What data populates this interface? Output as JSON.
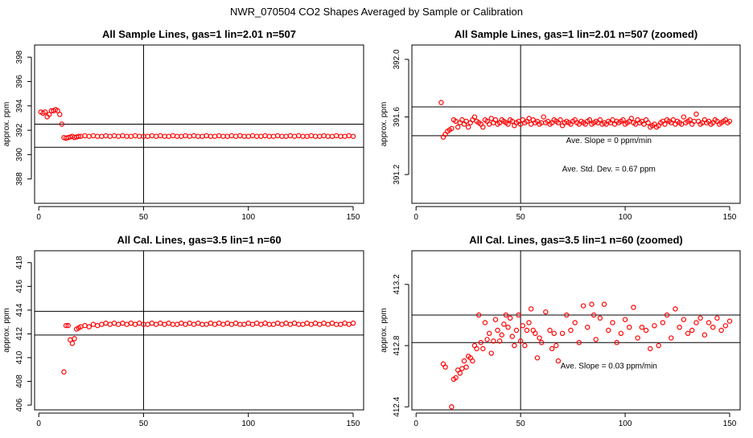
{
  "figure_title": "NWR_070504  CO2 Shapes Averaged by Sample or Calibration",
  "chart_data": [
    {
      "type": "scatter",
      "title": "All Sample Lines, gas=1 lin=2.01 n=507",
      "xlabel": "",
      "ylabel": "approx. ppm",
      "xlim": [
        -2,
        155
      ],
      "ylim": [
        386,
        399
      ],
      "xticks": [
        0,
        50,
        100,
        150
      ],
      "yticks": [
        388,
        390,
        392,
        394,
        396,
        398
      ],
      "hlines": [
        390.6,
        392.5
      ],
      "vline": 50,
      "color": "#ff0000",
      "annotations": [],
      "series": [
        {
          "x": [
            1,
            2,
            3,
            4,
            5,
            6,
            7,
            8,
            9,
            10,
            11,
            12,
            13,
            14,
            15,
            16,
            17,
            18,
            19,
            20,
            22,
            24,
            26,
            28,
            30,
            32,
            34,
            36,
            38,
            40,
            42,
            44,
            46,
            48,
            50,
            52,
            54,
            56,
            58,
            60,
            62,
            64,
            66,
            68,
            70,
            72,
            74,
            76,
            78,
            80,
            82,
            84,
            86,
            88,
            90,
            92,
            94,
            96,
            98,
            100,
            102,
            104,
            106,
            108,
            110,
            112,
            114,
            116,
            118,
            120,
            122,
            124,
            126,
            128,
            130,
            132,
            134,
            136,
            138,
            140,
            142,
            144,
            146,
            148,
            150
          ],
          "y": [
            393.5,
            393.4,
            393.5,
            393.1,
            393.3,
            393.6,
            393.6,
            393.7,
            393.6,
            393.3,
            392.5,
            391.4,
            391.35,
            391.4,
            391.45,
            391.5,
            391.4,
            391.45,
            391.5,
            391.5,
            391.55,
            391.5,
            391.55,
            391.5,
            391.5,
            391.55,
            391.5,
            391.55,
            391.5,
            391.55,
            391.5,
            391.5,
            391.55,
            391.5,
            391.5,
            391.5,
            391.55,
            391.5,
            391.55,
            391.5,
            391.5,
            391.55,
            391.5,
            391.5,
            391.55,
            391.5,
            391.55,
            391.5,
            391.5,
            391.55,
            391.5,
            391.5,
            391.55,
            391.5,
            391.5,
            391.55,
            391.5,
            391.55,
            391.5,
            391.5,
            391.55,
            391.5,
            391.5,
            391.55,
            391.5,
            391.5,
            391.55,
            391.5,
            391.5,
            391.55,
            391.5,
            391.55,
            391.5,
            391.5,
            391.55,
            391.5,
            391.5,
            391.55,
            391.5,
            391.5,
            391.55,
            391.5,
            391.5,
            391.55,
            391.5
          ]
        }
      ]
    },
    {
      "type": "scatter",
      "title": "All Sample Lines, gas=1 lin=2.01 n=507 (zoomed)",
      "xlabel": "",
      "ylabel": "approx. ppm",
      "xlim": [
        -2,
        155
      ],
      "ylim": [
        391.0,
        392.1
      ],
      "xticks": [
        0,
        50,
        100,
        150
      ],
      "yticks": [
        391.2,
        391.6,
        392.0
      ],
      "ytick_labels": [
        "391.2",
        "391.6",
        "392.0"
      ],
      "hlines": [
        391.47,
        391.67
      ],
      "vline": 50,
      "color": "#ff0000",
      "annotations": [
        "Ave. Slope =  0  ppm/min",
        "Ave. Std. Dev. =  0.67  ppm"
      ],
      "series": [
        {
          "x": [
            12,
            13,
            14,
            15,
            16,
            17,
            18,
            19,
            20,
            21,
            22,
            23,
            24,
            25,
            26,
            27,
            28,
            29,
            30,
            31,
            32,
            33,
            34,
            35,
            36,
            37,
            38,
            39,
            40,
            41,
            42,
            43,
            44,
            45,
            46,
            47,
            48,
            49,
            50,
            51,
            52,
            53,
            54,
            55,
            56,
            57,
            58,
            59,
            60,
            61,
            62,
            63,
            64,
            65,
            66,
            67,
            68,
            69,
            70,
            71,
            72,
            73,
            74,
            75,
            76,
            77,
            78,
            79,
            80,
            81,
            82,
            83,
            84,
            85,
            86,
            87,
            88,
            89,
            90,
            91,
            92,
            93,
            94,
            95,
            96,
            97,
            98,
            99,
            100,
            101,
            102,
            103,
            104,
            105,
            106,
            107,
            108,
            109,
            110,
            111,
            112,
            113,
            114,
            115,
            116,
            117,
            118,
            119,
            120,
            121,
            122,
            123,
            124,
            125,
            126,
            127,
            128,
            129,
            130,
            131,
            132,
            133,
            134,
            135,
            136,
            137,
            138,
            139,
            140,
            141,
            142,
            143,
            144,
            145,
            146,
            147,
            148,
            149,
            150
          ],
          "y": [
            391.7,
            391.46,
            391.48,
            391.5,
            391.51,
            391.52,
            391.58,
            391.57,
            391.53,
            391.56,
            391.58,
            391.55,
            391.57,
            391.53,
            391.56,
            391.58,
            391.6,
            391.57,
            391.56,
            391.55,
            391.53,
            391.58,
            391.57,
            391.55,
            391.59,
            391.56,
            391.58,
            391.55,
            391.56,
            391.58,
            391.57,
            391.56,
            391.55,
            391.58,
            391.57,
            391.54,
            391.56,
            391.57,
            391.55,
            391.58,
            391.56,
            391.57,
            391.59,
            391.55,
            391.58,
            391.56,
            391.57,
            391.55,
            391.56,
            391.6,
            391.56,
            391.57,
            391.55,
            391.56,
            391.58,
            391.57,
            391.56,
            391.58,
            391.54,
            391.56,
            391.57,
            391.56,
            391.55,
            391.57,
            391.58,
            391.56,
            391.55,
            391.57,
            391.56,
            391.55,
            391.57,
            391.58,
            391.55,
            391.56,
            391.57,
            391.56,
            391.58,
            391.55,
            391.56,
            391.55,
            391.57,
            391.56,
            391.58,
            391.55,
            391.57,
            391.56,
            391.57,
            391.58,
            391.55,
            391.56,
            391.57,
            391.59,
            391.56,
            391.55,
            391.58,
            391.56,
            391.57,
            391.55,
            391.58,
            391.56,
            391.53,
            391.54,
            391.55,
            391.53,
            391.54,
            391.56,
            391.57,
            391.55,
            391.58,
            391.57,
            391.56,
            391.58,
            391.55,
            391.57,
            391.56,
            391.55,
            391.6,
            391.56,
            391.57,
            391.58,
            391.55,
            391.57,
            391.62,
            391.57,
            391.55,
            391.56,
            391.58,
            391.56,
            391.57,
            391.55,
            391.56,
            391.58,
            391.57,
            391.55,
            391.56,
            391.57,
            391.58,
            391.56,
            391.57
          ]
        }
      ]
    },
    {
      "type": "scatter",
      "title": "All Cal. Lines, gas=3.5 lin=1 n=60",
      "xlabel": "",
      "ylabel": "approx. ppm",
      "xlim": [
        -2,
        155
      ],
      "ylim": [
        405.6,
        419.0
      ],
      "xticks": [
        0,
        50,
        100,
        150
      ],
      "yticks": [
        406,
        408,
        410,
        412,
        414,
        416,
        418
      ],
      "hlines": [
        411.9,
        413.9
      ],
      "vline": 50,
      "color": "#ff0000",
      "annotations": [],
      "series": [
        {
          "x": [
            12,
            13,
            14,
            15,
            16,
            17,
            18,
            19,
            20,
            22,
            24,
            26,
            28,
            30,
            32,
            34,
            36,
            38,
            40,
            42,
            44,
            46,
            48,
            50,
            52,
            54,
            56,
            58,
            60,
            62,
            64,
            66,
            68,
            70,
            72,
            74,
            76,
            78,
            80,
            82,
            84,
            86,
            88,
            90,
            92,
            94,
            96,
            98,
            100,
            102,
            104,
            106,
            108,
            110,
            112,
            114,
            116,
            118,
            120,
            122,
            124,
            126,
            128,
            130,
            132,
            134,
            136,
            138,
            140,
            142,
            144,
            146,
            148,
            150
          ],
          "y": [
            408.8,
            412.7,
            412.7,
            411.5,
            411.2,
            411.6,
            412.4,
            412.5,
            412.6,
            412.7,
            412.6,
            412.8,
            412.7,
            412.8,
            412.9,
            412.8,
            412.9,
            412.8,
            412.9,
            412.8,
            412.9,
            412.8,
            412.9,
            412.8,
            412.8,
            412.9,
            412.8,
            412.9,
            412.8,
            412.9,
            412.8,
            412.8,
            412.9,
            412.8,
            412.9,
            412.8,
            412.9,
            412.8,
            412.8,
            412.9,
            412.8,
            412.9,
            412.8,
            412.9,
            412.8,
            412.9,
            412.8,
            412.8,
            412.9,
            412.8,
            412.9,
            412.8,
            412.9,
            412.8,
            412.8,
            412.9,
            412.8,
            412.9,
            412.8,
            412.9,
            412.8,
            412.8,
            412.9,
            412.8,
            412.9,
            412.8,
            412.9,
            412.8,
            412.9,
            412.8,
            412.8,
            412.9,
            412.8,
            412.9
          ]
        }
      ]
    },
    {
      "type": "scatter",
      "title": "All Cal. Lines, gas=3.5 lin=1 n=60 (zoomed)",
      "xlabel": "",
      "ylabel": "approx. ppm",
      "xlim": [
        -2,
        155
      ],
      "ylim": [
        412.38,
        413.42
      ],
      "xticks": [
        0,
        50,
        100,
        150
      ],
      "yticks": [
        412.4,
        412.8,
        413.2
      ],
      "ytick_labels": [
        "412.4",
        "412.8",
        "413.2"
      ],
      "hlines": [
        412.82,
        413.0
      ],
      "vline": 50,
      "color": "#ff0000",
      "annotations": [
        "Ave. Slope =  0.03  ppm/min"
      ],
      "series": [
        {
          "x": [
            13,
            14,
            17,
            18,
            19,
            20,
            21,
            22,
            23,
            24,
            25,
            26,
            27,
            28,
            29,
            30,
            31,
            32,
            33,
            34,
            35,
            36,
            37,
            38,
            39,
            40,
            41,
            42,
            43,
            44,
            45,
            46,
            47,
            48,
            49,
            50,
            51,
            52,
            53,
            54,
            55,
            56,
            57,
            58,
            59,
            60,
            62,
            64,
            65,
            66,
            67,
            68,
            70,
            72,
            74,
            76,
            78,
            80,
            82,
            84,
            85,
            86,
            88,
            90,
            92,
            94,
            96,
            98,
            100,
            102,
            104,
            106,
            108,
            110,
            112,
            114,
            116,
            118,
            120,
            122,
            124,
            126,
            128,
            130,
            132,
            134,
            136,
            138,
            140,
            142,
            144,
            146,
            148,
            150
          ],
          "y": [
            412.68,
            412.66,
            412.4,
            412.58,
            412.59,
            412.64,
            412.62,
            412.65,
            412.7,
            412.66,
            412.73,
            412.72,
            412.7,
            412.8,
            412.78,
            413.0,
            412.82,
            412.78,
            412.95,
            412.84,
            412.88,
            412.75,
            412.83,
            412.97,
            412.9,
            412.83,
            412.87,
            412.94,
            413.0,
            412.92,
            412.98,
            412.86,
            412.8,
            412.9,
            413.0,
            412.83,
            412.93,
            412.8,
            412.9,
            412.95,
            413.04,
            412.9,
            412.88,
            412.72,
            412.85,
            412.82,
            413.02,
            412.9,
            412.78,
            412.88,
            412.8,
            412.7,
            412.88,
            413.0,
            412.9,
            412.95,
            412.82,
            413.06,
            412.92,
            413.07,
            413.0,
            412.84,
            412.98,
            413.07,
            412.9,
            412.95,
            412.82,
            412.88,
            412.97,
            412.92,
            413.05,
            412.85,
            412.92,
            412.9,
            412.78,
            412.93,
            412.8,
            412.95,
            413.0,
            412.85,
            413.04,
            412.92,
            412.97,
            412.88,
            412.9,
            412.95,
            412.98,
            412.87,
            412.95,
            412.92,
            412.98,
            412.9,
            412.93,
            412.96
          ]
        }
      ]
    }
  ]
}
